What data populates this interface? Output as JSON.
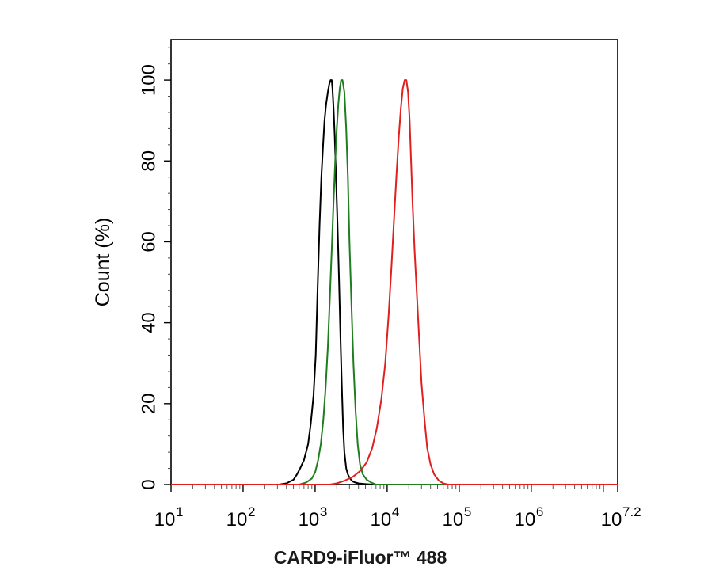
{
  "chart_data": {
    "type": "line",
    "title": "",
    "xlabel": "CARD9-iFluor™ 488",
    "ylabel": "Count  (%)",
    "xscale": "log",
    "xlim": [
      10,
      15848931.92
    ],
    "ylim": [
      0,
      110
    ],
    "grid": false,
    "legend": "none",
    "x_tick_labels": [
      {
        "base": "10",
        "exp": "1"
      },
      {
        "base": "10",
        "exp": "2"
      },
      {
        "base": "10",
        "exp": "3"
      },
      {
        "base": "10",
        "exp": "4"
      },
      {
        "base": "10",
        "exp": "5"
      },
      {
        "base": "10",
        "exp": "6"
      },
      {
        "base": "10",
        "exp": "7.2"
      }
    ],
    "y_tick_labels": [
      "0",
      "20",
      "40",
      "60",
      "80",
      "100"
    ],
    "y_ticks": [
      0,
      20,
      40,
      60,
      80,
      100
    ],
    "series": [
      {
        "color": "#000000",
        "x": [
          10,
          316,
          400,
          500,
          560,
          620,
          700,
          800,
          870,
          950,
          1020,
          1080,
          1150,
          1220,
          1290,
          1350,
          1420,
          1500,
          1570,
          1640,
          1700,
          1740,
          1800,
          1870,
          1950,
          2040,
          2150,
          2250,
          2350,
          2450,
          2550,
          2700,
          2850,
          3050,
          3300,
          3600,
          4000,
          4500,
          5200,
          6300,
          15848931.92
        ],
        "y": [
          0,
          0,
          0.3,
          1.2,
          2.5,
          4,
          6,
          10,
          15,
          22,
          32,
          48,
          64,
          76,
          84,
          90,
          94,
          97,
          99,
          100,
          100,
          98,
          93,
          86,
          76,
          65,
          50,
          36,
          24,
          14,
          8,
          4,
          2.5,
          1.5,
          0.8,
          0.5,
          0.3,
          0.2,
          0.1,
          0,
          0
        ]
      },
      {
        "color": "#1e7d1e",
        "x": [
          10,
          600,
          750,
          900,
          1000,
          1100,
          1200,
          1300,
          1400,
          1500,
          1600,
          1700,
          1800,
          1900,
          2000,
          2100,
          2200,
          2300,
          2400,
          2550,
          2700,
          2850,
          3000,
          3200,
          3400,
          3650,
          3900,
          4200,
          4600,
          5200,
          6000,
          7000,
          15848931.92
        ],
        "y": [
          0,
          0,
          0.5,
          1.5,
          3,
          6,
          10,
          16,
          24,
          34,
          46,
          58,
          70,
          80,
          88,
          94,
          98,
          100,
          100,
          97,
          88,
          76,
          60,
          44,
          30,
          18,
          10,
          5,
          2.5,
          1.2,
          0.5,
          0,
          0
        ]
      },
      {
        "color": "#e01f1f",
        "x": [
          10,
          1600,
          2000,
          2600,
          3400,
          4300,
          5200,
          6200,
          7200,
          8300,
          9400,
          10500,
          11500,
          12500,
          13500,
          14500,
          15500,
          16500,
          17500,
          18500,
          19500,
          20500,
          21500,
          22500,
          24000,
          26000,
          28000,
          30000,
          33000,
          36000,
          40000,
          45000,
          52000,
          60000,
          70000,
          15848931.92
        ],
        "y": [
          0,
          0,
          0.3,
          1,
          2,
          3.5,
          5.5,
          9,
          14,
          21,
          30,
          42,
          54,
          66,
          77,
          86,
          93,
          98,
          100,
          100,
          97,
          90,
          80,
          70,
          58,
          46,
          35,
          25,
          16,
          9,
          5,
          2.5,
          1,
          0.3,
          0,
          0
        ]
      }
    ]
  }
}
